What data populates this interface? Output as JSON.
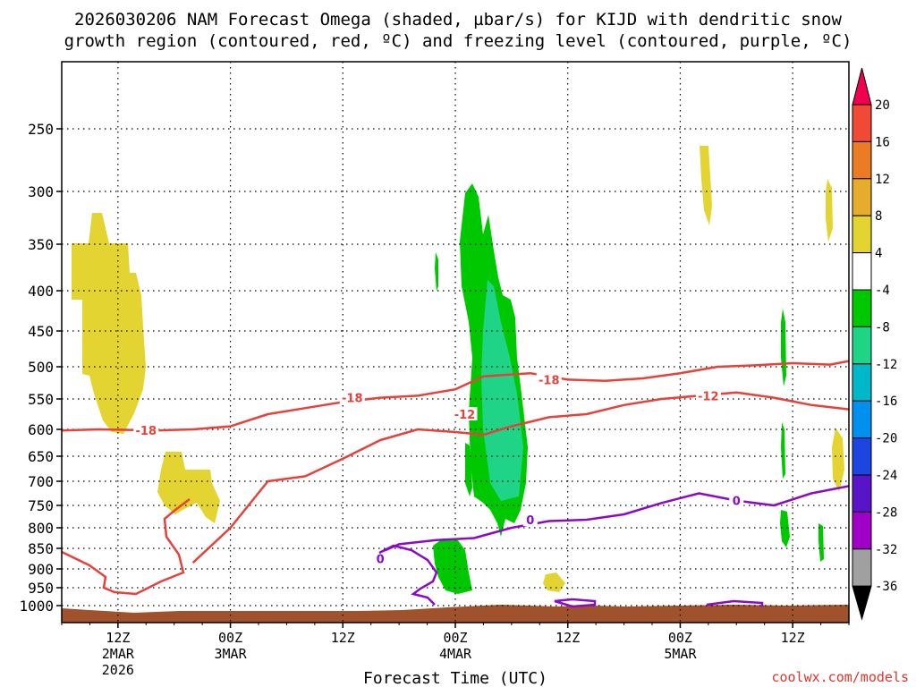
{
  "title_line1": "2026030206 NAM Forecast Omega (shaded, µbar/s) for KIJD with dendritic snow",
  "title_line2": "growth region (contoured, red, ºC) and freezing level (contoured, purple, ºC)",
  "credit": "coolwx.com/models",
  "chart_data": {
    "type": "time-height cross section",
    "title": "2026030206 NAM Forecast Omega (shaded, µbar/s) for KIJD with dendritic snow growth region (contoured, red, ºC) and freezing level (contoured, purple, ºC)",
    "xlabel": "Forecast Time (UTC)",
    "ylabel": "",
    "x_unit": "hours since 2026-03-02 06Z",
    "x_range": [
      0,
      84
    ],
    "xlim": [
      "2026-03-02 06Z",
      "2026-03-05 18Z"
    ],
    "ylim_hpa": [
      200,
      1050
    ],
    "y_ticks": [
      250,
      300,
      350,
      400,
      450,
      500,
      550,
      600,
      650,
      700,
      750,
      800,
      850,
      900,
      950,
      1000
    ],
    "x_ticks": [
      {
        "label": [
          "12Z",
          "2MAR",
          "2026"
        ]
      },
      {
        "label": [
          "00Z",
          "3MAR"
        ]
      },
      {
        "label": [
          "12Z"
        ]
      },
      {
        "label": [
          "00Z",
          "4MAR"
        ]
      },
      {
        "label": [
          "12Z"
        ]
      },
      {
        "label": [
          "00Z",
          "5MAR"
        ]
      },
      {
        "label": [
          "12Z"
        ]
      }
    ],
    "grid": true,
    "colorbar": {
      "unit": "µbar/s",
      "ticks": [
        "20",
        "16",
        "12",
        "8",
        "4",
        "-4",
        "-8",
        "-12",
        "-16",
        "-20",
        "-24",
        "-28",
        "-32",
        "-36"
      ],
      "colors": [
        "#f0004e",
        "#f04a36",
        "#ec7c24",
        "#e6ac2c",
        "#e3d432",
        "#ffffff",
        "#00c800",
        "#1fd487",
        "#00b8c8",
        "#0090f0",
        "#1d46e0",
        "#5a14c8",
        "#a000c8",
        "#a0a0a0",
        "#000000"
      ],
      "colors_note": "top arrow, 20-16, 16-12, 12-8, 8-4, 4..-4, -4..-8, -8..-12, -12..-16, -16..-20, -20..-24, -24..-28, -28..-32, -32..-36, bottom arrow"
    },
    "contours": {
      "dendritic_red": [
        {
          "label": "-18",
          "hours": [
            0,
            4,
            10,
            14,
            18,
            22,
            26,
            30,
            34,
            38,
            40,
            42,
            45,
            48,
            50,
            54,
            58,
            62,
            66,
            70,
            74,
            78,
            82,
            84
          ],
          "hpa": [
            602,
            600,
            602,
            600,
            595,
            575,
            565,
            555,
            548,
            545,
            540,
            535,
            515,
            512,
            510,
            520,
            522,
            518,
            510,
            500,
            498,
            495,
            497,
            492
          ]
        },
        {
          "label": "-12",
          "hours": [
            14,
            18,
            22,
            26,
            30,
            34,
            38,
            42,
            45,
            48,
            52,
            56,
            60,
            64,
            68,
            72,
            76,
            80,
            84
          ],
          "hpa": [
            885,
            800,
            700,
            690,
            655,
            620,
            600,
            605,
            610,
            595,
            580,
            575,
            560,
            550,
            545,
            540,
            548,
            560,
            567
          ]
        }
      ],
      "freezing_purple": [
        {
          "label": "0",
          "hours": [
            34,
            36,
            40,
            44,
            48,
            52,
            56,
            60,
            64,
            68,
            72,
            76,
            80,
            84
          ],
          "hpa": [
            860,
            840,
            830,
            825,
            800,
            785,
            782,
            770,
            745,
            725,
            740,
            750,
            725,
            710
          ]
        }
      ],
      "red_labels": [
        "-18",
        "-18",
        "-18",
        "-12",
        "-12"
      ],
      "purple_labels": [
        "0",
        "0",
        "0"
      ]
    }
  }
}
